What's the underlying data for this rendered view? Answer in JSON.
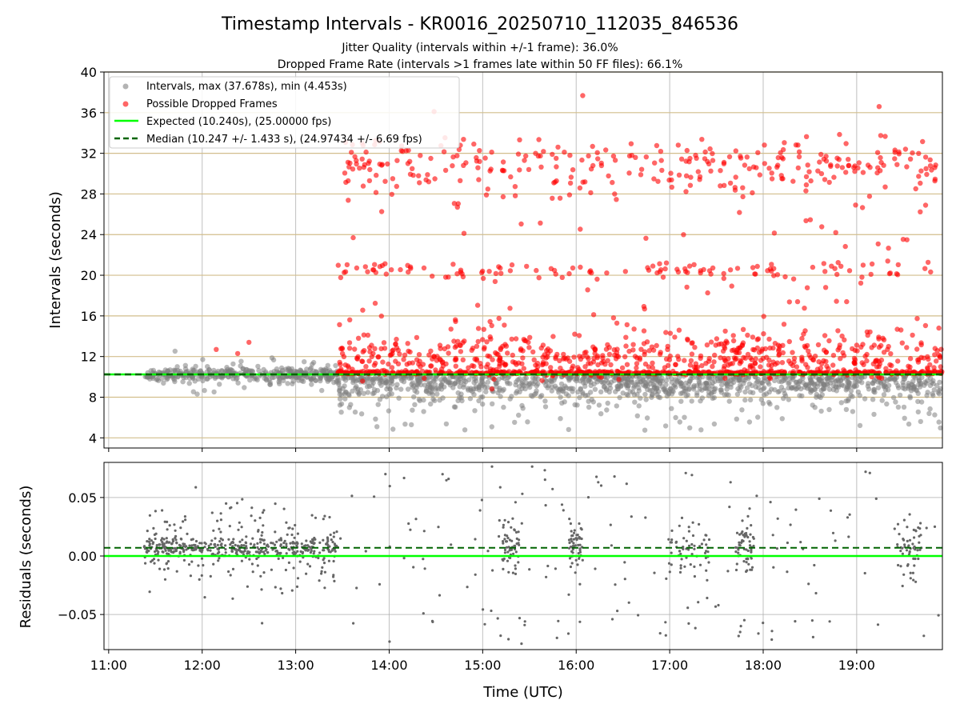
{
  "chart_data": {
    "title": "Timestamp Intervals - KR0016_20250710_112035_846536",
    "subtitle_lines": [
      "Jitter Quality (intervals within +/-1 frame): 36.0%",
      "Dropped Frame Rate (intervals >1 frames late within 50 FF files): 66.1%"
    ],
    "xlabel": "Time (UTC)",
    "xticks": [
      "11:00",
      "12:00",
      "13:00",
      "14:00",
      "15:00",
      "16:00",
      "17:00",
      "18:00",
      "19:00"
    ],
    "x_range": [
      "10:57",
      "19:55"
    ],
    "colors": {
      "intervals": "#808080",
      "dropped": "#ff0000",
      "expected": "#00ff00",
      "median": "#006400",
      "hgrid_top": "#d2be8c",
      "grid": "#b0b0b0"
    },
    "panels": [
      {
        "type": "scatter",
        "ylabel": "Intervals (seconds)",
        "ylim": [
          3,
          40
        ],
        "yticks": [
          "4",
          "8",
          "12",
          "16",
          "20",
          "24",
          "28",
          "32",
          "36",
          "40"
        ],
        "legend_position": "upper-left",
        "legend": [
          {
            "label": "Intervals, max (37.678s), min (4.453s)",
            "marker": "gray-dot"
          },
          {
            "label": "Possible Dropped Frames",
            "marker": "red-dot"
          },
          {
            "label": "Expected (10.240s), (25.00000 fps)",
            "marker": "green-line"
          },
          {
            "label": "Median (10.247 +/- 1.433 s), (24.97434 +/- 6.69 fps)",
            "marker": "darkgreen-dashed"
          }
        ],
        "expected": 10.24,
        "median": 10.247,
        "max": 37.678,
        "min": 4.453,
        "clusters_dropped": [
          10.3,
          11.6,
          20.5,
          30.8
        ]
      },
      {
        "type": "scatter",
        "ylabel": "Residuals (seconds)",
        "ylim": [
          -0.08,
          0.08
        ],
        "yticks": [
          "0.05",
          "0.00",
          "−0.05"
        ],
        "expected": 0.0,
        "median": 0.007
      }
    ]
  }
}
